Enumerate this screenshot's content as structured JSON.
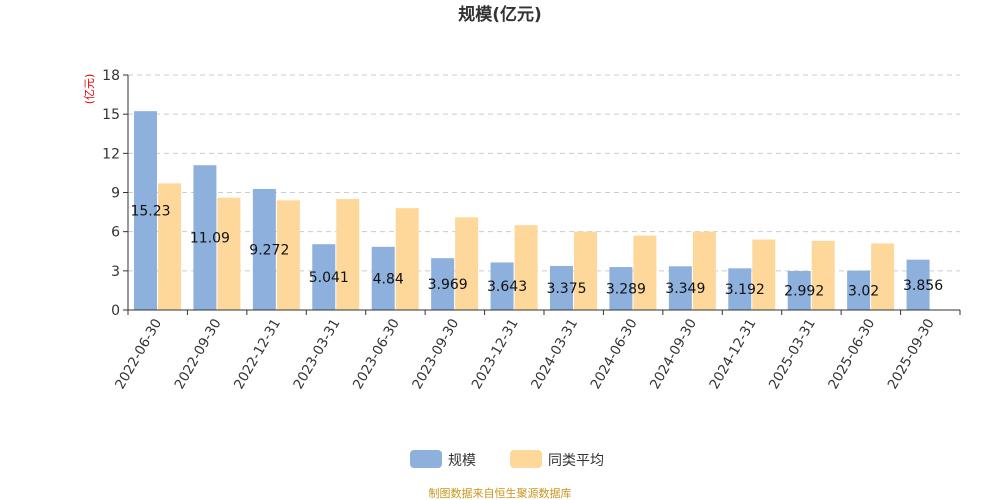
{
  "chart_data": {
    "type": "bar",
    "title": "规模(亿元)",
    "ylabel": "(亿元)",
    "xlabel": "",
    "ylim": [
      0,
      18
    ],
    "yticks": [
      0,
      3,
      6,
      9,
      12,
      15,
      18
    ],
    "grid": true,
    "legend_position": "bottom",
    "categories": [
      "2022-06-30",
      "2022-09-30",
      "2022-12-31",
      "2023-03-31",
      "2023-06-30",
      "2023-09-30",
      "2023-12-31",
      "2024-03-31",
      "2024-06-30",
      "2024-09-30",
      "2024-12-31",
      "2025-03-31",
      "2025-06-30",
      "2025-09-30"
    ],
    "series": [
      {
        "name": "规模",
        "color": "#8eb0dd",
        "values": [
          15.23,
          11.09,
          9.272,
          5.041,
          4.84,
          3.969,
          3.643,
          3.375,
          3.289,
          3.349,
          3.192,
          2.992,
          3.02,
          3.856
        ],
        "labels": [
          "15.23",
          "11.09",
          "9.272",
          "5.041",
          "4.84",
          "3.969",
          "3.643",
          "3.375",
          "3.289",
          "3.349",
          "3.192",
          "2.992",
          "3.02",
          "3.856"
        ]
      },
      {
        "name": "同类平均",
        "color": "#fdd89a",
        "values": [
          9.7,
          8.6,
          8.4,
          8.5,
          7.8,
          7.1,
          6.5,
          6.0,
          5.7,
          6.0,
          5.4,
          5.3,
          5.1,
          null
        ]
      }
    ]
  },
  "source": "制图数据来自恒生聚源数据库"
}
